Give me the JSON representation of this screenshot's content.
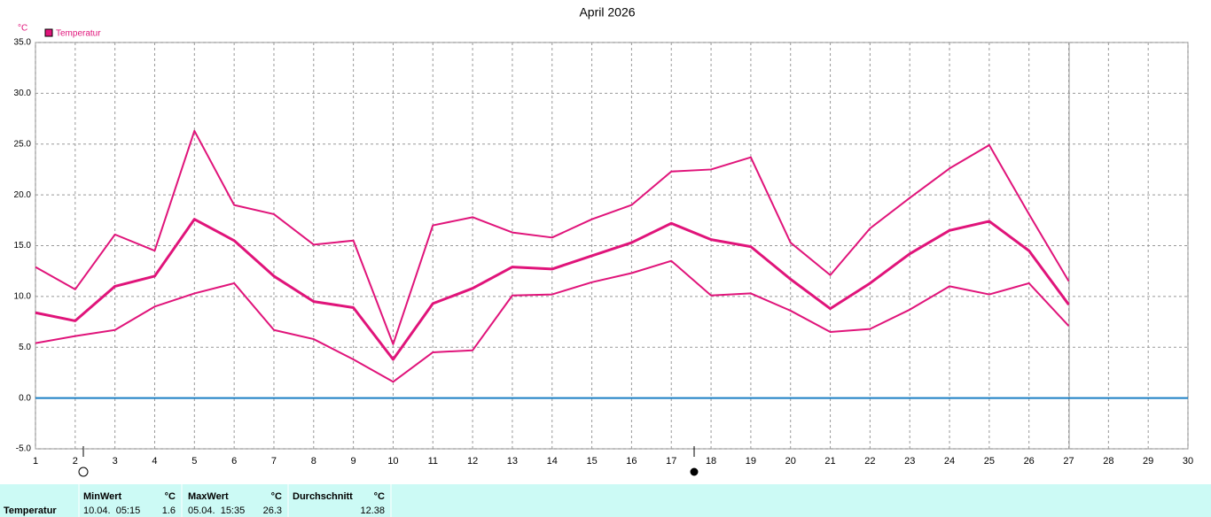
{
  "chart_data": {
    "type": "line",
    "title": "April 2026",
    "y_unit": "°C",
    "x": [
      1,
      2,
      3,
      4,
      5,
      6,
      7,
      8,
      9,
      10,
      11,
      12,
      13,
      14,
      15,
      16,
      17,
      18,
      19,
      20,
      21,
      22,
      23,
      24,
      25,
      26,
      27,
      28,
      29,
      30
    ],
    "series": [
      {
        "name": "Temperatur",
        "color": "#e0147a",
        "values": [
          8.4,
          7.6,
          11.0,
          12.0,
          17.6,
          15.5,
          12.0,
          9.5,
          8.9,
          3.8,
          9.3,
          10.8,
          12.9,
          12.7,
          14.0,
          15.3,
          17.2,
          15.6,
          14.9,
          11.7,
          8.8,
          11.3,
          14.2,
          16.5,
          17.4,
          14.5,
          9.2,
          null,
          null,
          null
        ],
        "max": [
          12.9,
          10.7,
          16.1,
          14.5,
          26.3,
          19.0,
          18.1,
          15.1,
          15.5,
          5.3,
          17.0,
          17.8,
          16.3,
          15.8,
          17.6,
          19.0,
          22.3,
          22.5,
          23.7,
          15.3,
          12.1,
          16.7,
          19.7,
          22.6,
          24.9,
          18.1,
          11.5,
          null,
          null,
          null
        ],
        "min": [
          5.4,
          6.1,
          6.7,
          9.0,
          10.3,
          11.3,
          6.7,
          5.8,
          3.8,
          1.6,
          4.5,
          4.7,
          10.1,
          10.2,
          11.4,
          12.3,
          13.5,
          10.1,
          10.3,
          8.6,
          6.5,
          6.8,
          8.7,
          11.0,
          10.2,
          11.3,
          7.1,
          null,
          null,
          null
        ]
      }
    ],
    "xlim": [
      1,
      30
    ],
    "xticks": [
      1,
      2,
      3,
      4,
      5,
      6,
      7,
      8,
      9,
      10,
      11,
      12,
      13,
      14,
      15,
      16,
      17,
      18,
      19,
      20,
      21,
      22,
      23,
      24,
      25,
      26,
      27,
      28,
      29,
      30
    ],
    "ylim": [
      -5,
      35
    ],
    "yticks": [
      {
        "value": -5,
        "label": "-5.0"
      },
      {
        "value": 0,
        "label": "0.0"
      },
      {
        "value": 5,
        "label": "5.0"
      },
      {
        "value": 10,
        "label": "10.0"
      },
      {
        "value": 15,
        "label": "15.0"
      },
      {
        "value": 20,
        "label": "20.0"
      },
      {
        "value": 25,
        "label": "25.0"
      },
      {
        "value": 30,
        "label": "30.0"
      },
      {
        "value": 35,
        "label": "35.0"
      }
    ],
    "grid": true,
    "reference_line": {
      "value": 0,
      "color": "#1a7fc4"
    }
  },
  "table": {
    "row_label": "Temperatur",
    "columns": [
      {
        "header": "MinWert",
        "unit": "°C",
        "date": "10.04.  05:15",
        "value": "1.6"
      },
      {
        "header": "MaxWert",
        "unit": "°C",
        "date": "05.04.  15:35",
        "value": "26.3"
      },
      {
        "header": "Durchschnitt",
        "unit": "°C",
        "value": "12.38"
      }
    ]
  }
}
